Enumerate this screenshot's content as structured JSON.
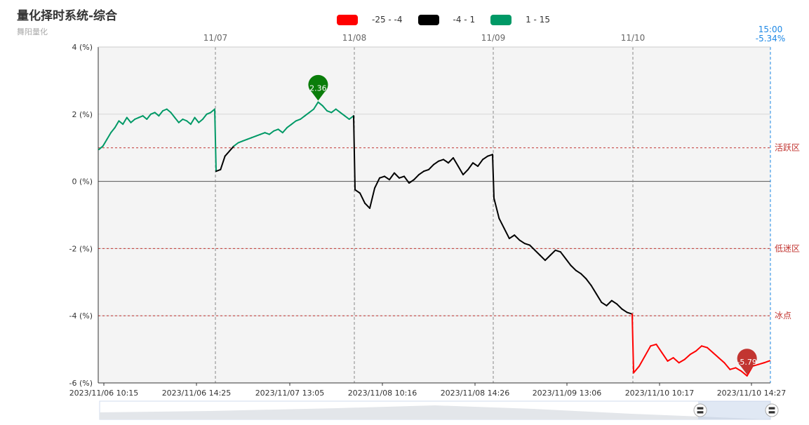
{
  "title": "量化择时系统-综合",
  "subtitle": "舞阳量化",
  "colors": {
    "low": "#ff0000",
    "mid": "#000000",
    "high": "#009966",
    "zone_line": "#c23531",
    "end_line": "#1e88e5",
    "pin_high": "#0a7d0a",
    "pin_low": "#c23531"
  },
  "legend": [
    {
      "label": "-25 - -4",
      "color": "#ff0000"
    },
    {
      "label": "-4 - 1",
      "color": "#000000"
    },
    {
      "label": "1 - 15",
      "color": "#009966"
    }
  ],
  "chart_data": {
    "type": "line",
    "ylim": [
      -6,
      4
    ],
    "yticks": [
      -6,
      -4,
      -2,
      0,
      2,
      4
    ],
    "ytick_labels": [
      "-6 (%)",
      "-4 (%)",
      "-2 (%)",
      "0 (%)",
      "2 (%)",
      "4 (%)"
    ],
    "xtick_labels": [
      "2023/11/06 10:15",
      "2023/11/06 14:25",
      "2023/11/07 13:05",
      "2023/11/08 10:16",
      "2023/11/08 14:26",
      "2023/11/09 13:06",
      "2023/11/10 10:17",
      "2023/11/10 14:27"
    ],
    "day_labels": [
      "11/07",
      "11/08",
      "11/09",
      "11/10"
    ],
    "end_marker": {
      "time": "15:00",
      "value_label": "-5.34%"
    },
    "zones": [
      {
        "label": "活跃区",
        "value": 1
      },
      {
        "label": "低迷区",
        "value": -2
      },
      {
        "label": "冰点",
        "value": -4
      }
    ],
    "visual_map": [
      {
        "range": [
          -25,
          -4
        ],
        "color": "#ff0000"
      },
      {
        "range": [
          -4,
          1
        ],
        "color": "#000000"
      },
      {
        "range": [
          1,
          15
        ],
        "color": "#009966"
      }
    ],
    "annotations": [
      {
        "label": "2.36",
        "value": 2.36,
        "kind": "max"
      },
      {
        "label": "-5.79",
        "value": -5.79,
        "kind": "min"
      }
    ],
    "days": [
      {
        "date": "2023/11/06",
        "values": [
          0.95,
          1.05,
          1.25,
          1.45,
          1.6,
          1.8,
          1.7,
          1.9,
          1.75,
          1.85,
          1.9,
          1.95,
          1.85,
          2.0,
          2.05,
          1.95,
          2.1,
          2.15,
          2.05,
          1.9,
          1.75,
          1.85,
          1.8,
          1.7,
          1.9,
          1.75,
          1.85,
          2.0,
          2.05,
          2.15
        ]
      },
      {
        "date": "2023/11/07",
        "values": [
          0.3,
          0.35,
          0.75,
          0.9,
          1.05,
          1.15,
          1.2,
          1.25,
          1.3,
          1.35,
          1.4,
          1.45,
          1.4,
          1.5,
          1.55,
          1.45,
          1.6,
          1.7,
          1.8,
          1.85,
          1.95,
          2.05,
          2.15,
          2.36,
          2.25,
          2.1,
          2.05,
          2.15,
          2.05,
          1.95,
          1.85,
          1.95
        ]
      },
      {
        "date": "2023/11/08",
        "values": [
          -0.25,
          -0.35,
          -0.65,
          -0.8,
          -0.2,
          0.1,
          0.15,
          0.05,
          0.25,
          0.1,
          0.15,
          -0.05,
          0.05,
          0.2,
          0.3,
          0.35,
          0.5,
          0.6,
          0.65,
          0.55,
          0.7,
          0.45,
          0.2,
          0.35,
          0.55,
          0.45,
          0.65,
          0.75,
          0.8
        ]
      },
      {
        "date": "2023/11/09",
        "values": [
          -0.5,
          -1.1,
          -1.4,
          -1.7,
          -1.6,
          -1.75,
          -1.85,
          -1.9,
          -2.05,
          -2.2,
          -2.35,
          -2.2,
          -2.05,
          -2.1,
          -2.3,
          -2.5,
          -2.65,
          -2.75,
          -2.9,
          -3.1,
          -3.35,
          -3.6,
          -3.7,
          -3.55,
          -3.65,
          -3.8,
          -3.9,
          -3.95
        ]
      },
      {
        "date": "2023/11/10",
        "values": [
          -5.7,
          -5.5,
          -5.2,
          -4.9,
          -4.85,
          -5.1,
          -5.35,
          -5.25,
          -5.4,
          -5.3,
          -5.15,
          -5.05,
          -4.9,
          -4.95,
          -5.1,
          -5.25,
          -5.4,
          -5.6,
          -5.55,
          -5.65,
          -5.79,
          -5.5,
          -5.45,
          -5.4,
          -5.34
        ]
      }
    ]
  },
  "slider": {
    "left_handle_label": "〓",
    "right_handle_label": "〓"
  }
}
